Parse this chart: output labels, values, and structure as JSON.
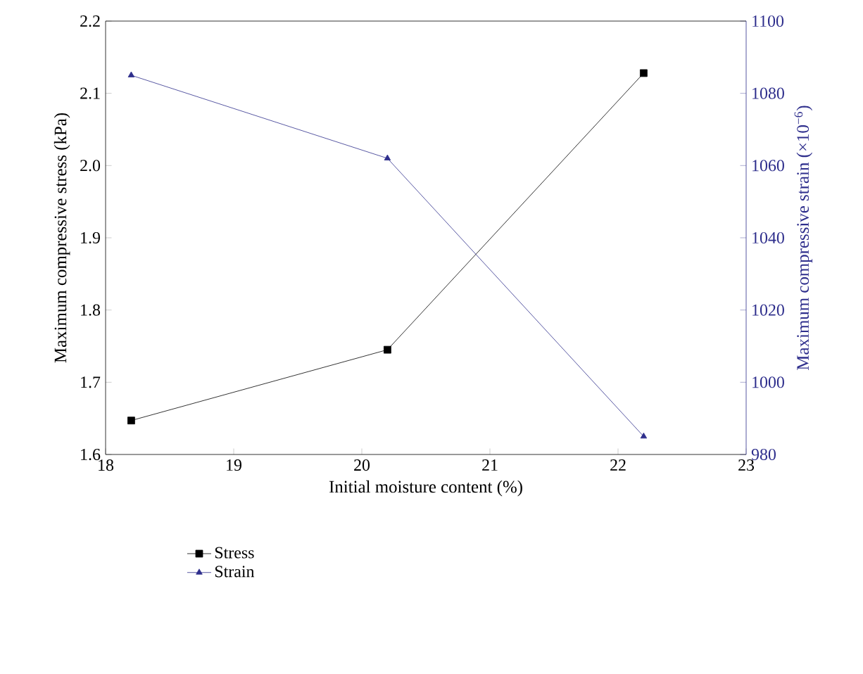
{
  "chart_data": {
    "type": "line",
    "xlabel": "Initial moisture content (%)",
    "ylabel": "Maximum compressive stress (kPa)",
    "y2label": "Maximum compressive strain (×10$^{−6}$)",
    "x": [
      18.2,
      20.2,
      22.2
    ],
    "series": [
      {
        "name": "Stress",
        "color": "#000000",
        "marker": "square",
        "values": [
          1.647,
          1.745,
          2.128
        ]
      },
      {
        "name": "Strain",
        "color": "#2e2e8c",
        "marker": "triangle",
        "axis": "y2",
        "values": [
          1085,
          1062,
          985
        ]
      }
    ],
    "xlim": [
      18,
      23
    ],
    "xticks": [
      18,
      19,
      20,
      21,
      22,
      23
    ],
    "ylim": [
      1.6,
      2.2
    ],
    "yticks": [
      1.6,
      1.7,
      1.8,
      1.9,
      {
        "value": 2.0,
        "label": "2.0"
      },
      2.1,
      2.2
    ],
    "y2lim": [
      980,
      1100
    ],
    "y2ticks": [
      980,
      1000,
      1020,
      1040,
      1060,
      1080,
      1100
    ],
    "legend": "bottom"
  }
}
